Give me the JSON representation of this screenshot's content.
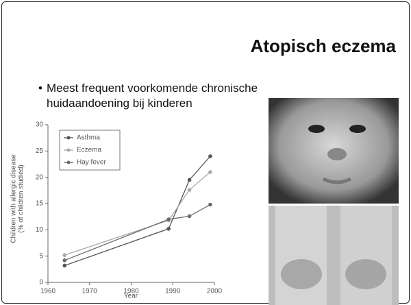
{
  "slide": {
    "title": "Atopisch eczema",
    "bullets": [
      "Meest frequent voorkomende chronische huidaandoening bij kinderen"
    ]
  },
  "chart_data": {
    "type": "line",
    "y_label": [
      "Children with allergic disease",
      "(% of children studied)"
    ],
    "x_label": "Year",
    "x": [
      1964,
      1989,
      1994,
      1999
    ],
    "series": [
      {
        "name": "Asthma",
        "color": "#555555",
        "values": [
          3.2,
          10.2,
          19.5,
          24
        ]
      },
      {
        "name": "Eczema",
        "color": "#a8a8a8",
        "values": [
          5.2,
          11.8,
          17.6,
          21
        ]
      },
      {
        "name": "Hay fever",
        "color": "#6a6a6a",
        "values": [
          4.2,
          12,
          12.6,
          14.8
        ]
      }
    ],
    "xlim": [
      1960,
      2000
    ],
    "xticks": [
      1960,
      1970,
      1980,
      1990,
      2000
    ],
    "ylim": [
      0,
      30
    ],
    "yticks": [
      0,
      5,
      10,
      15,
      20,
      25,
      30
    ],
    "legend": "top-left"
  }
}
